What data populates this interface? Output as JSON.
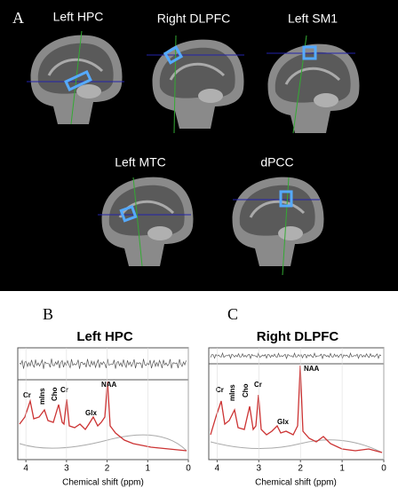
{
  "panel_a": {
    "letter": "A",
    "images": [
      {
        "label": "Left HPC"
      },
      {
        "label": "Right DLPFC"
      },
      {
        "label": "Left SM1"
      },
      {
        "label": "Left MTC"
      },
      {
        "label": "dPCC"
      }
    ]
  },
  "panel_b": {
    "letter": "B",
    "title": "Left HPC",
    "peaks": [
      "Cr",
      "mIns",
      "Cho",
      "Cr",
      "Glx",
      "NAA"
    ],
    "xlim": [
      4.2,
      0
    ],
    "xticks": [
      4,
      3,
      2,
      1,
      0
    ],
    "xlabel": "Chemical shift (ppm)"
  },
  "panel_c": {
    "letter": "C",
    "title": "Right DLPFC",
    "peaks": [
      "Cr",
      "mIns",
      "Cho",
      "Cr",
      "Glx",
      "NAA"
    ],
    "xlim": [
      4.2,
      0
    ],
    "xticks": [
      4,
      3,
      2,
      1,
      0
    ],
    "xlabel": "Chemical shift (ppm)"
  }
}
